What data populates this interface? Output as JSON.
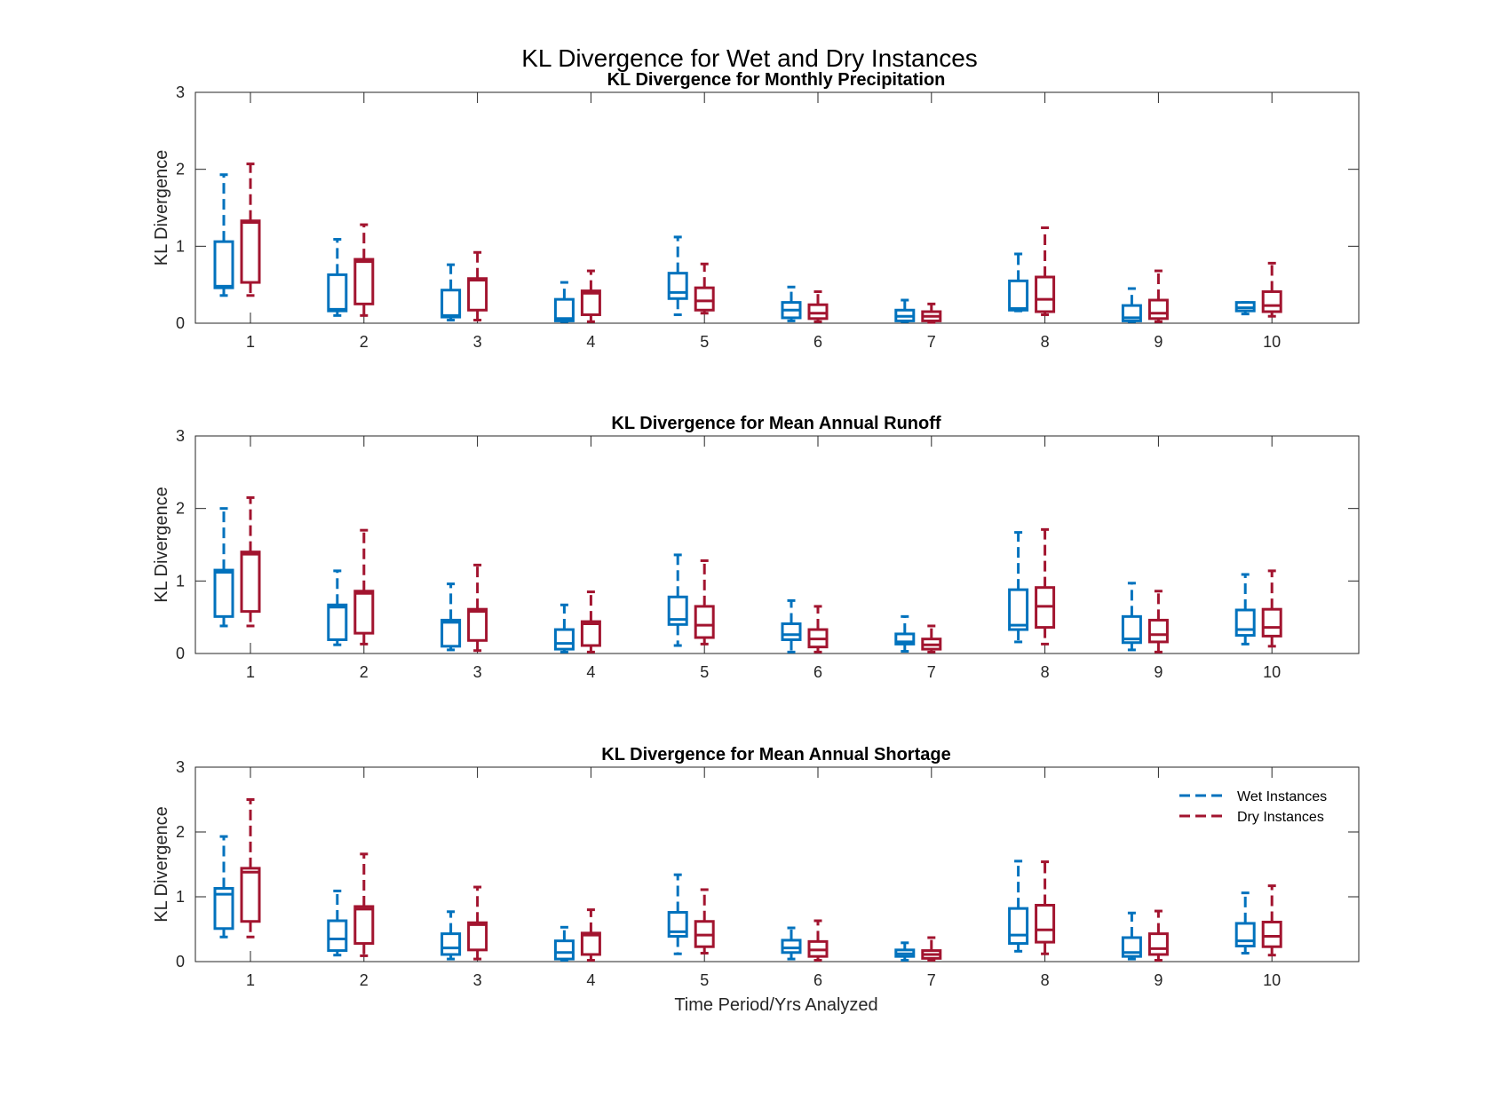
{
  "figure": {
    "title": "KL Divergence for Wet and Dry Instances",
    "xlabel": "Time Period/Yrs Analyzed"
  },
  "colors": {
    "wet": "#0072BD",
    "dry": "#A2142F",
    "axis": "#262626"
  },
  "legend": {
    "placement": "top-right of bottom panel",
    "items": [
      {
        "label": "Wet Instances",
        "color": "#0072BD",
        "style": "dashed"
      },
      {
        "label": "Dry Instances",
        "color": "#A2142F",
        "style": "dashed"
      }
    ]
  },
  "chart_data": [
    {
      "type": "boxplot",
      "title": "KL Divergence for Monthly Precipitation",
      "ylabel": "KL Divergence",
      "xlabel": "",
      "ylim": [
        0,
        3
      ],
      "yticks": [
        0,
        1,
        2,
        3
      ],
      "categories": [
        "1",
        "2",
        "3",
        "4",
        "5",
        "6",
        "7",
        "8",
        "9",
        "10"
      ],
      "series": [
        {
          "name": "Wet Instances",
          "boxes": [
            {
              "min": 0.36,
              "q1": 0.46,
              "median": 0.48,
              "q3": 1.06,
              "max": 1.93
            },
            {
              "min": 0.1,
              "q1": 0.16,
              "median": 0.18,
              "q3": 0.63,
              "max": 1.09
            },
            {
              "min": 0.04,
              "q1": 0.08,
              "median": 0.1,
              "q3": 0.43,
              "max": 0.76
            },
            {
              "min": 0.02,
              "q1": 0.03,
              "median": 0.06,
              "q3": 0.31,
              "max": 0.53
            },
            {
              "min": 0.11,
              "q1": 0.32,
              "median": 0.4,
              "q3": 0.65,
              "max": 1.12
            },
            {
              "min": 0.03,
              "q1": 0.07,
              "median": 0.17,
              "q3": 0.27,
              "max": 0.47
            },
            {
              "min": 0.02,
              "q1": 0.03,
              "median": 0.09,
              "q3": 0.17,
              "max": 0.3
            },
            {
              "min": 0.16,
              "q1": 0.17,
              "median": 0.19,
              "q3": 0.55,
              "max": 0.9
            },
            {
              "min": 0.02,
              "q1": 0.03,
              "median": 0.07,
              "q3": 0.23,
              "max": 0.45
            },
            {
              "min": 0.12,
              "q1": 0.16,
              "median": 0.2,
              "q3": 0.27,
              "max": 0.27
            }
          ]
        },
        {
          "name": "Dry Instances",
          "boxes": [
            {
              "min": 0.36,
              "q1": 0.53,
              "median": 1.31,
              "q3": 1.33,
              "max": 2.07
            },
            {
              "min": 0.1,
              "q1": 0.25,
              "median": 0.8,
              "q3": 0.83,
              "max": 1.28
            },
            {
              "min": 0.04,
              "q1": 0.17,
              "median": 0.56,
              "q3": 0.58,
              "max": 0.92
            },
            {
              "min": 0.02,
              "q1": 0.11,
              "median": 0.39,
              "q3": 0.42,
              "max": 0.68
            },
            {
              "min": 0.13,
              "q1": 0.17,
              "median": 0.29,
              "q3": 0.46,
              "max": 0.77
            },
            {
              "min": 0.02,
              "q1": 0.06,
              "median": 0.13,
              "q3": 0.24,
              "max": 0.41
            },
            {
              "min": 0.01,
              "q1": 0.03,
              "median": 0.09,
              "q3": 0.15,
              "max": 0.25
            },
            {
              "min": 0.11,
              "q1": 0.15,
              "median": 0.31,
              "q3": 0.6,
              "max": 1.24
            },
            {
              "min": 0.02,
              "q1": 0.06,
              "median": 0.13,
              "q3": 0.3,
              "max": 0.68
            },
            {
              "min": 0.09,
              "q1": 0.15,
              "median": 0.23,
              "q3": 0.41,
              "max": 0.78
            }
          ]
        }
      ]
    },
    {
      "type": "boxplot",
      "title": "KL Divergence for Mean Annual Runoff",
      "ylabel": "KL Divergence",
      "xlabel": "",
      "ylim": [
        0,
        3
      ],
      "yticks": [
        0,
        1,
        2,
        3
      ],
      "categories": [
        "1",
        "2",
        "3",
        "4",
        "5",
        "6",
        "7",
        "8",
        "9",
        "10"
      ],
      "series": [
        {
          "name": "Wet Instances",
          "boxes": [
            {
              "min": 0.38,
              "q1": 0.51,
              "median": 1.12,
              "q3": 1.15,
              "max": 2.0
            },
            {
              "min": 0.12,
              "q1": 0.19,
              "median": 0.64,
              "q3": 0.67,
              "max": 1.14
            },
            {
              "min": 0.05,
              "q1": 0.1,
              "median": 0.43,
              "q3": 0.46,
              "max": 0.96
            },
            {
              "min": 0.02,
              "q1": 0.06,
              "median": 0.14,
              "q3": 0.33,
              "max": 0.67
            },
            {
              "min": 0.11,
              "q1": 0.4,
              "median": 0.47,
              "q3": 0.78,
              "max": 1.36
            },
            {
              "min": 0.02,
              "q1": 0.19,
              "median": 0.26,
              "q3": 0.41,
              "max": 0.73
            },
            {
              "min": 0.03,
              "q1": 0.13,
              "median": 0.16,
              "q3": 0.27,
              "max": 0.51
            },
            {
              "min": 0.16,
              "q1": 0.33,
              "median": 0.39,
              "q3": 0.88,
              "max": 1.67
            },
            {
              "min": 0.05,
              "q1": 0.15,
              "median": 0.2,
              "q3": 0.51,
              "max": 0.97
            },
            {
              "min": 0.13,
              "q1": 0.25,
              "median": 0.33,
              "q3": 0.6,
              "max": 1.09
            }
          ]
        },
        {
          "name": "Dry Instances",
          "boxes": [
            {
              "min": 0.38,
              "q1": 0.58,
              "median": 1.37,
              "q3": 1.4,
              "max": 2.15
            },
            {
              "min": 0.13,
              "q1": 0.28,
              "median": 0.83,
              "q3": 0.86,
              "max": 1.7
            },
            {
              "min": 0.04,
              "q1": 0.18,
              "median": 0.58,
              "q3": 0.61,
              "max": 1.22
            },
            {
              "min": 0.02,
              "q1": 0.11,
              "median": 0.41,
              "q3": 0.44,
              "max": 0.85
            },
            {
              "min": 0.13,
              "q1": 0.22,
              "median": 0.39,
              "q3": 0.65,
              "max": 1.28
            },
            {
              "min": 0.02,
              "q1": 0.09,
              "median": 0.2,
              "q3": 0.33,
              "max": 0.65
            },
            {
              "min": 0.02,
              "q1": 0.06,
              "median": 0.12,
              "q3": 0.2,
              "max": 0.38
            },
            {
              "min": 0.13,
              "q1": 0.36,
              "median": 0.65,
              "q3": 0.91,
              "max": 1.71
            },
            {
              "min": 0.02,
              "q1": 0.16,
              "median": 0.26,
              "q3": 0.46,
              "max": 0.86
            },
            {
              "min": 0.1,
              "q1": 0.24,
              "median": 0.36,
              "q3": 0.61,
              "max": 1.14
            }
          ]
        }
      ]
    },
    {
      "type": "boxplot",
      "title": "KL Divergence for Mean Annual Shortage",
      "ylabel": "KL Divergence",
      "xlabel": "Time Period/Yrs Analyzed",
      "ylim": [
        0,
        3
      ],
      "yticks": [
        0,
        1,
        2,
        3
      ],
      "categories": [
        "1",
        "2",
        "3",
        "4",
        "5",
        "6",
        "7",
        "8",
        "9",
        "10"
      ],
      "series": [
        {
          "name": "Wet Instances",
          "boxes": [
            {
              "min": 0.38,
              "q1": 0.51,
              "median": 1.04,
              "q3": 1.13,
              "max": 1.93
            },
            {
              "min": 0.1,
              "q1": 0.17,
              "median": 0.35,
              "q3": 0.63,
              "max": 1.09
            },
            {
              "min": 0.04,
              "q1": 0.11,
              "median": 0.21,
              "q3": 0.43,
              "max": 0.77
            },
            {
              "min": 0.02,
              "q1": 0.04,
              "median": 0.14,
              "q3": 0.32,
              "max": 0.53
            },
            {
              "min": 0.12,
              "q1": 0.39,
              "median": 0.46,
              "q3": 0.76,
              "max": 1.34
            },
            {
              "min": 0.04,
              "q1": 0.14,
              "median": 0.21,
              "q3": 0.33,
              "max": 0.52
            },
            {
              "min": 0.02,
              "q1": 0.08,
              "median": 0.12,
              "q3": 0.18,
              "max": 0.29
            },
            {
              "min": 0.16,
              "q1": 0.28,
              "median": 0.41,
              "q3": 0.82,
              "max": 1.55
            },
            {
              "min": 0.04,
              "q1": 0.08,
              "median": 0.14,
              "q3": 0.37,
              "max": 0.75
            },
            {
              "min": 0.13,
              "q1": 0.24,
              "median": 0.32,
              "q3": 0.59,
              "max": 1.06
            }
          ]
        },
        {
          "name": "Dry Instances",
          "boxes": [
            {
              "min": 0.38,
              "q1": 0.62,
              "median": 1.38,
              "q3": 1.44,
              "max": 2.5
            },
            {
              "min": 0.09,
              "q1": 0.28,
              "median": 0.81,
              "q3": 0.85,
              "max": 1.66
            },
            {
              "min": 0.04,
              "q1": 0.18,
              "median": 0.57,
              "q3": 0.6,
              "max": 1.15
            },
            {
              "min": 0.02,
              "q1": 0.11,
              "median": 0.41,
              "q3": 0.44,
              "max": 0.8
            },
            {
              "min": 0.13,
              "q1": 0.23,
              "median": 0.41,
              "q3": 0.62,
              "max": 1.11
            },
            {
              "min": 0.02,
              "q1": 0.08,
              "median": 0.18,
              "q3": 0.31,
              "max": 0.63
            },
            {
              "min": 0.02,
              "q1": 0.05,
              "median": 0.11,
              "q3": 0.17,
              "max": 0.37
            },
            {
              "min": 0.12,
              "q1": 0.3,
              "median": 0.49,
              "q3": 0.87,
              "max": 1.54
            },
            {
              "min": 0.02,
              "q1": 0.11,
              "median": 0.2,
              "q3": 0.43,
              "max": 0.78
            },
            {
              "min": 0.1,
              "q1": 0.23,
              "median": 0.39,
              "q3": 0.61,
              "max": 1.17
            }
          ]
        }
      ]
    }
  ]
}
